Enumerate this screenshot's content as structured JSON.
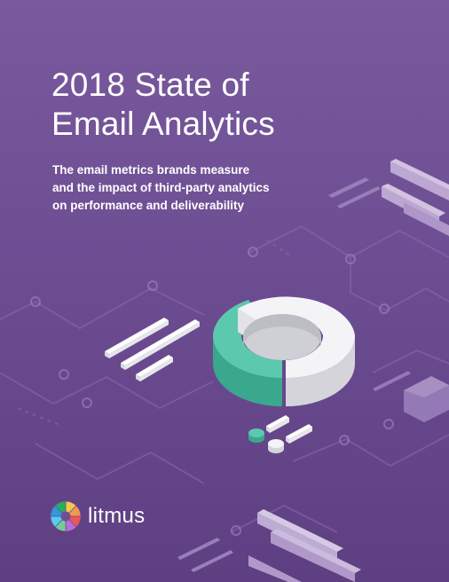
{
  "cover": {
    "title_lines": [
      "2018 State of",
      "Email Analytics"
    ],
    "subtitle_lines": [
      "The email metrics brands measure",
      "and the impact of third-party analytics",
      "on performance and deliverability"
    ]
  },
  "brand": {
    "name": "litmus",
    "logo_icon": "litmus-color-wheel-icon",
    "wheel_colors": [
      "#f2c94c",
      "#f2994a",
      "#eb5757",
      "#bb6bd9",
      "#6fcf97",
      "#56ccf2",
      "#2d9cdb",
      "#27ae60"
    ]
  },
  "colors": {
    "background_top": "#7a5a9e",
    "background_bottom": "#5e3f82",
    "donut_teal": "#4fbfa5",
    "donut_white": "#f1f1f3"
  }
}
